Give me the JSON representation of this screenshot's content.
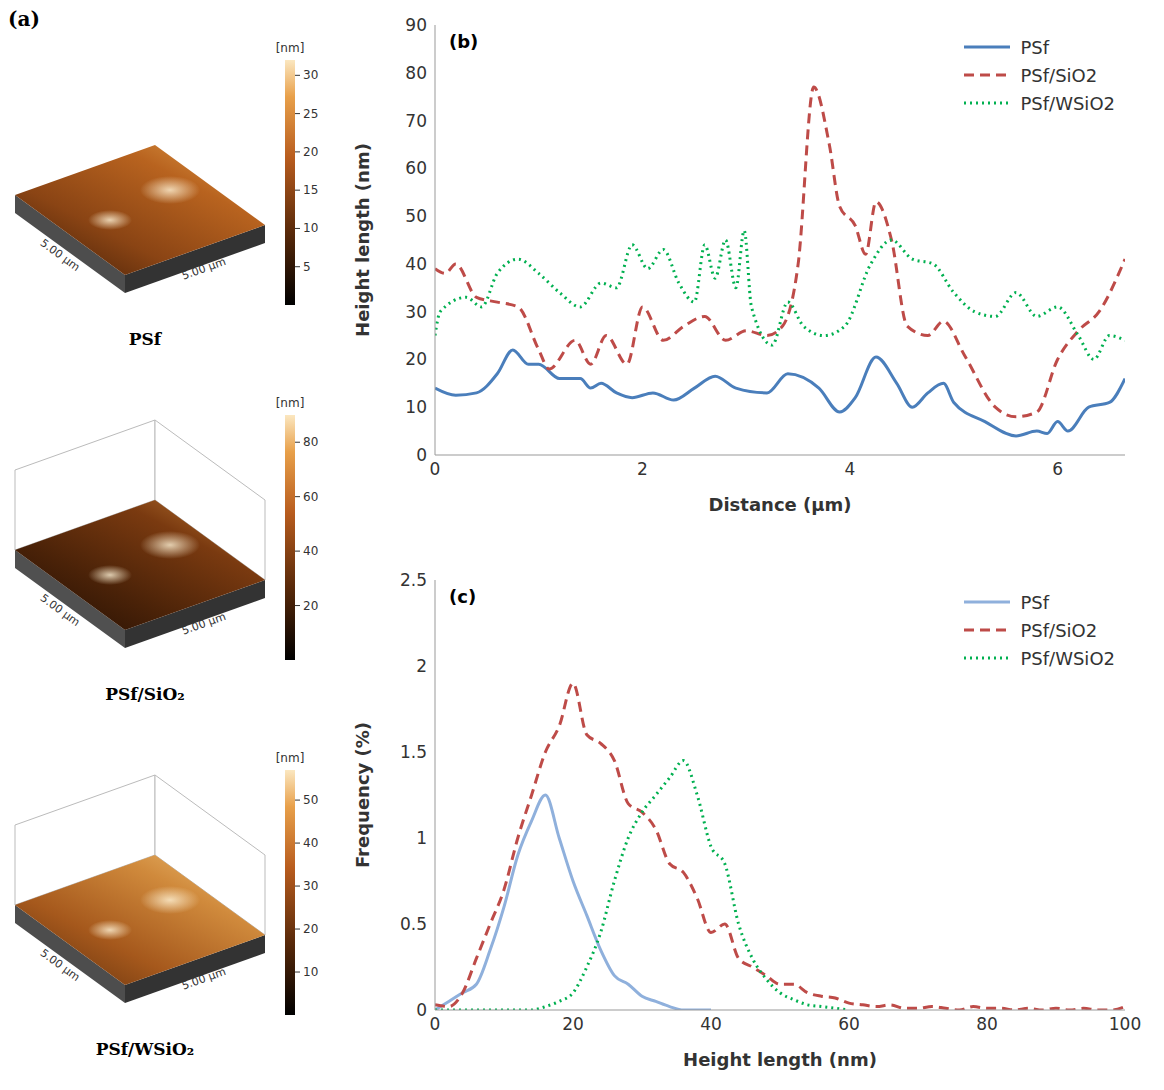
{
  "afm_panel": {
    "letter": "(a)",
    "images": [
      {
        "label": "PSf",
        "axis_label": "5.00 µm",
        "colorbar": {
          "unit": "[nm]",
          "range": [
            0,
            32
          ],
          "ticks": [
            5,
            10,
            15,
            20,
            25,
            30
          ]
        }
      },
      {
        "label": "PSf/SiO₂",
        "axis_label": "5.00 µm",
        "colorbar": {
          "unit": "[nm]",
          "range": [
            0,
            90
          ],
          "ticks": [
            20,
            40,
            60,
            80
          ]
        }
      },
      {
        "label": "PSf/WSiO₂",
        "axis_label": "5.00 µm",
        "colorbar": {
          "unit": "[nm]",
          "range": [
            0,
            57
          ],
          "ticks": [
            10,
            20,
            30,
            40,
            50
          ]
        }
      }
    ]
  },
  "chart_data": [
    {
      "type": "line",
      "title": "(b)",
      "x_label": "Distance (µm)",
      "y_label": "Height length (nm)",
      "xlim": [
        0,
        6.65
      ],
      "xticks": [
        0,
        2,
        4,
        6
      ],
      "ylim": [
        0,
        90
      ],
      "yticks": [
        0,
        10,
        20,
        30,
        40,
        50,
        60,
        70,
        80,
        90
      ],
      "grid": false,
      "legend": "top-right",
      "series": [
        {
          "name": "PSf",
          "color": "#4a7ebb",
          "line_style": "solid",
          "x": [
            0,
            0.2,
            0.4,
            0.6,
            0.75,
            0.9,
            1.0,
            1.2,
            1.4,
            1.5,
            1.6,
            1.75,
            1.9,
            2.1,
            2.3,
            2.5,
            2.7,
            2.9,
            3.2,
            3.4,
            3.7,
            3.9,
            4.05,
            4.25,
            4.45,
            4.6,
            4.75,
            4.9,
            5.0,
            5.3,
            5.6,
            5.8,
            5.9,
            6.0,
            6.1,
            6.3,
            6.5,
            6.65
          ],
          "values": [
            14,
            12.5,
            13,
            17,
            22,
            19,
            19,
            16,
            16,
            14,
            15,
            13,
            12,
            13,
            11.5,
            14,
            16.5,
            14,
            13,
            17,
            14,
            9,
            12,
            20.5,
            15,
            10,
            13,
            15,
            11,
            7,
            4,
            5,
            4.5,
            7,
            5,
            10,
            11,
            16
          ]
        },
        {
          "name": "PSf/SiO2",
          "color": "#be4b48",
          "line_style": "dashed",
          "x": [
            0,
            0.1,
            0.2,
            0.4,
            0.6,
            0.8,
            1.0,
            1.1,
            1.35,
            1.5,
            1.65,
            1.85,
            2.0,
            2.2,
            2.4,
            2.6,
            2.8,
            3.0,
            3.2,
            3.35,
            3.5,
            3.65,
            3.8,
            3.9,
            4.05,
            4.15,
            4.25,
            4.4,
            4.55,
            4.75,
            4.9,
            5.1,
            5.4,
            5.6,
            5.8,
            6.0,
            6.2,
            6.4,
            6.65
          ],
          "values": [
            39,
            38,
            40,
            33,
            32,
            31,
            22,
            18,
            24,
            19,
            25,
            19,
            31,
            24,
            27,
            29,
            24,
            26,
            25,
            27,
            40,
            77,
            65,
            52,
            48,
            42,
            53,
            45,
            27,
            25,
            28,
            21,
            10,
            8,
            9,
            20,
            26,
            30,
            41
          ]
        },
        {
          "name": "PSf/WSiO2",
          "color": "#00b050",
          "line_style": "dotted",
          "x": [
            0,
            0.05,
            0.3,
            0.45,
            0.6,
            0.8,
            1.0,
            1.2,
            1.4,
            1.6,
            1.75,
            1.9,
            2.05,
            2.2,
            2.35,
            2.5,
            2.6,
            2.7,
            2.8,
            2.9,
            2.98,
            3.05,
            3.25,
            3.4,
            3.55,
            3.75,
            3.95,
            4.2,
            4.4,
            4.6,
            4.8,
            5.0,
            5.2,
            5.4,
            5.6,
            5.8,
            6.0,
            6.2,
            6.35,
            6.5,
            6.65
          ],
          "values": [
            25,
            30,
            33,
            31,
            38,
            41,
            38,
            34,
            31,
            36,
            35,
            44,
            39,
            43,
            36,
            32,
            44,
            37,
            45,
            35,
            47,
            31,
            23,
            32,
            27,
            25,
            27,
            40,
            45,
            41,
            40,
            34,
            30,
            29,
            34,
            29,
            31,
            25,
            20,
            25,
            24
          ]
        }
      ]
    },
    {
      "type": "line",
      "title": "(c)",
      "x_label": "Height length (nm)",
      "y_label": "Frequency (%)",
      "xlim": [
        0,
        100
      ],
      "xticks": [
        0,
        20,
        40,
        60,
        80,
        100
      ],
      "ylim": [
        0,
        2.5
      ],
      "yticks": [
        0,
        0.5,
        1,
        1.5,
        2,
        2.5
      ],
      "grid": false,
      "legend": "top-right",
      "series": [
        {
          "name": "PSf",
          "color": "#8fb0dc",
          "line_style": "solid",
          "x": [
            0,
            2,
            4,
            6,
            8,
            10,
            12,
            14,
            16,
            18,
            20,
            22,
            24,
            26,
            28,
            30,
            32,
            34,
            36,
            38,
            40
          ],
          "values": [
            0,
            0.05,
            0.1,
            0.15,
            0.35,
            0.6,
            0.9,
            1.1,
            1.25,
            1.0,
            0.75,
            0.55,
            0.35,
            0.2,
            0.15,
            0.08,
            0.05,
            0.02,
            0,
            0,
            0
          ]
        },
        {
          "name": "PSf/SiO2",
          "color": "#be4b48",
          "line_style": "dashed",
          "x": [
            0,
            2,
            4,
            6,
            8,
            10,
            12,
            14,
            16,
            18,
            20,
            22,
            24,
            26,
            28,
            30,
            32,
            34,
            36,
            38,
            40,
            42,
            44,
            46,
            48,
            50,
            52,
            54,
            56,
            58,
            60,
            62,
            64,
            66,
            68,
            70,
            72,
            74,
            76,
            78,
            80,
            82,
            84,
            86,
            88,
            90,
            92,
            94,
            96,
            98,
            100
          ],
          "values": [
            0.03,
            0.02,
            0.1,
            0.3,
            0.5,
            0.7,
            1.0,
            1.25,
            1.5,
            1.65,
            1.9,
            1.6,
            1.55,
            1.45,
            1.2,
            1.15,
            1.05,
            0.85,
            0.8,
            0.65,
            0.45,
            0.5,
            0.3,
            0.25,
            0.2,
            0.15,
            0.15,
            0.1,
            0.08,
            0.07,
            0.04,
            0.03,
            0.02,
            0.03,
            0.01,
            0.01,
            0.02,
            0.01,
            0,
            0.02,
            0.01,
            0.01,
            0,
            0.01,
            0,
            0.01,
            0,
            0.01,
            0,
            0,
            0.02
          ]
        },
        {
          "name": "PSf/WSiO2",
          "color": "#00b050",
          "line_style": "dotted",
          "x": [
            0,
            2,
            4,
            6,
            8,
            10,
            12,
            14,
            16,
            18,
            20,
            22,
            24,
            26,
            28,
            30,
            32,
            34,
            36,
            38,
            40,
            42,
            44,
            46,
            48,
            50,
            52,
            54,
            56,
            58,
            60
          ],
          "values": [
            0,
            0,
            0,
            0,
            0,
            0,
            0,
            0,
            0.02,
            0.05,
            0.1,
            0.25,
            0.45,
            0.75,
            1.0,
            1.15,
            1.25,
            1.35,
            1.45,
            1.25,
            0.95,
            0.85,
            0.5,
            0.3,
            0.18,
            0.1,
            0.06,
            0.03,
            0.02,
            0.01,
            0
          ]
        }
      ]
    }
  ]
}
